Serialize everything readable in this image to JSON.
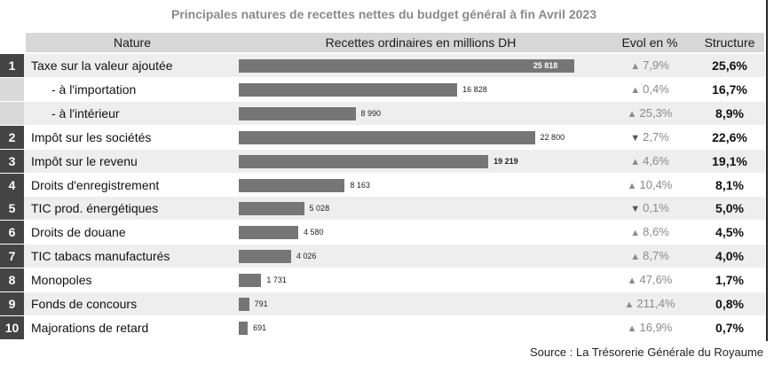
{
  "title": "Principales natures de recettes nettes du budget général à fin Avril 2023",
  "headers": {
    "nature": "Nature",
    "recettes": "Recettes ordinaires en millions DH",
    "evol": "Evol en %",
    "structure": "Structure"
  },
  "source": "Source : La Trésorerie Générale du Royaume",
  "colors": {
    "bar": "#767676",
    "number_badge": "#444444",
    "header": "#d7d7d7",
    "row_shade": "#eeeeee"
  },
  "chart_data": {
    "type": "bar",
    "orientation": "horizontal",
    "title": "Principales natures de recettes nettes du budget général à fin Avril 2023",
    "value_label": "Recettes ordinaires en millions DH",
    "xlim": [
      0,
      27000
    ],
    "rows": [
      {
        "rank": "1",
        "name": "Taxe sur la valeur ajoutée",
        "value": 25818,
        "value_label": "25 818",
        "evol_dir": "up",
        "evol": "7,9%",
        "structure": "25,6%"
      },
      {
        "rank": "",
        "name": "- à l'importation",
        "value": 16828,
        "value_label": "16 828",
        "evol_dir": "up",
        "evol": "0,4%",
        "structure": "16,7%"
      },
      {
        "rank": "",
        "name": "- à l'intérieur",
        "value": 8990,
        "value_label": "8 990",
        "evol_dir": "up",
        "evol": "25,3%",
        "structure": "8,9%"
      },
      {
        "rank": "2",
        "name": "Impôt sur les sociétés",
        "value": 22800,
        "value_label": "22 800",
        "evol_dir": "down",
        "evol": "2,7%",
        "structure": "22,6%"
      },
      {
        "rank": "3",
        "name": "Impôt sur le revenu",
        "value": 19219,
        "value_label": "19 219",
        "evol_dir": "up",
        "evol": "4,6%",
        "structure": "19,1%"
      },
      {
        "rank": "4",
        "name": "Droits d'enregistrement",
        "value": 8163,
        "value_label": "8 163",
        "evol_dir": "up",
        "evol": "10,4%",
        "structure": "8,1%"
      },
      {
        "rank": "5",
        "name": "TIC prod. énergétiques",
        "value": 5028,
        "value_label": "5 028",
        "evol_dir": "down",
        "evol": "0,1%",
        "structure": "5,0%"
      },
      {
        "rank": "6",
        "name": "Droits de douane",
        "value": 4580,
        "value_label": "4 580",
        "evol_dir": "up",
        "evol": "8,6%",
        "structure": "4,5%"
      },
      {
        "rank": "7",
        "name": "TIC tabacs manufacturés",
        "value": 4026,
        "value_label": "4 026",
        "evol_dir": "up",
        "evol": "8,7%",
        "structure": "4,0%"
      },
      {
        "rank": "8",
        "name": "Monopoles",
        "value": 1731,
        "value_label": "1 731",
        "evol_dir": "up",
        "evol": "47,6%",
        "structure": "1,7%"
      },
      {
        "rank": "9",
        "name": "Fonds de concours",
        "value": 791,
        "value_label": "791",
        "evol_dir": "up",
        "evol": "211,4%",
        "structure": "0,8%"
      },
      {
        "rank": "10",
        "name": "Majorations de retard",
        "value": 691,
        "value_label": "691",
        "evol_dir": "up",
        "evol": "16,9%",
        "structure": "0,7%"
      }
    ]
  }
}
